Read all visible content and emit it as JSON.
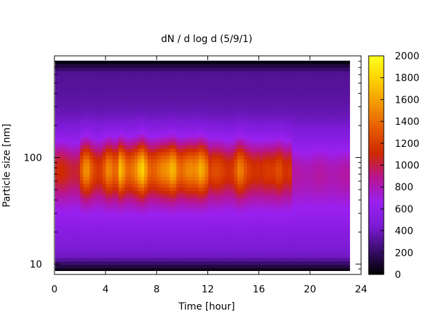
{
  "chart_data": {
    "type": "heatmap",
    "title": "dN / d log d (5/9/1)",
    "xlabel": "Time [hour]",
    "ylabel": "Particle size [nm]",
    "x_range": [
      0,
      24
    ],
    "x_ticks": [
      "0",
      "4",
      "8",
      "12",
      "16",
      "20",
      "24"
    ],
    "y_scale": "log",
    "y_range": [
      8,
      900
    ],
    "y_ticks": [
      "10",
      "100"
    ],
    "data_x_extent": [
      0,
      23.1
    ],
    "data_y_extent": [
      8.5,
      820
    ],
    "colorbar_range": [
      0,
      2000
    ],
    "colorbar_ticks": [
      "0",
      "200",
      "400",
      "600",
      "800",
      "1000",
      "1200",
      "1400",
      "1600",
      "1800",
      "2000"
    ],
    "colormap": [
      "#000000",
      "#3a0d6e",
      "#7d1bd6",
      "#9a20f0",
      "#b8148e",
      "#cf2a00",
      "#e65a00",
      "#f39600",
      "#fdd000",
      "#ffff20"
    ],
    "peak_times_hours": [
      2.5,
      4.2,
      5.2,
      6.9,
      9.3,
      11.5,
      14.5,
      17.6
    ],
    "typical_peak_size_nm": 80,
    "series": [
      {
        "time_range_hours": [
          0,
          2
        ],
        "peak_value": 1250
      },
      {
        "time_range_hours": [
          2,
          5
        ],
        "peak_value": 1500
      },
      {
        "time_range_hours": [
          5,
          12
        ],
        "peak_value": 1750
      },
      {
        "time_range_hours": [
          12,
          16
        ],
        "peak_value": 1450
      },
      {
        "time_range_hours": [
          16,
          18.5
        ],
        "peak_value": 1350
      },
      {
        "time_range_hours": [
          18.5,
          23.1
        ],
        "peak_value": 900
      }
    ],
    "grid": false
  }
}
